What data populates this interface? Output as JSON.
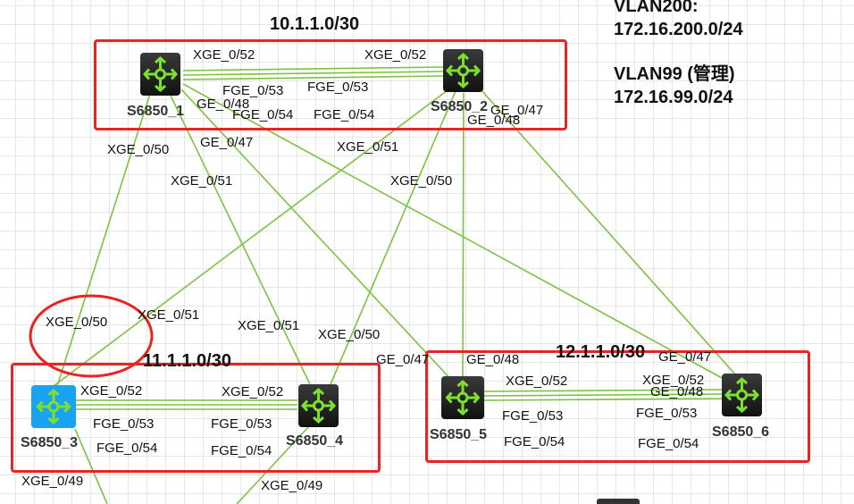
{
  "info": {
    "vlan200": "VLAN200:",
    "vlan200_net": "172.16.200.0/24",
    "vlan99": "VLAN99 (管理)",
    "vlan99_net": "172.16.99.0/24"
  },
  "subnets": [
    "10.1.1.0/30",
    "11.1.1.0/30",
    "12.1.1.0/30"
  ],
  "devices": [
    "S6850_1",
    "S6850_2",
    "S6850_3",
    "S6850_4",
    "S6850_5",
    "S6850_6"
  ],
  "ports": {
    "xge52": "XGE_0/52",
    "fge53": "FGE_0/53",
    "fge54": "FGE_0/54",
    "xge50": "XGE_0/50",
    "xge51": "XGE_0/51",
    "xge49": "XGE_0/49",
    "ge47": "GE_0/47",
    "ge48": "GE_0/48"
  },
  "colors": {
    "link": "#7dc242",
    "highlight": "#e82424",
    "switch_selected": "#19a3f0"
  }
}
